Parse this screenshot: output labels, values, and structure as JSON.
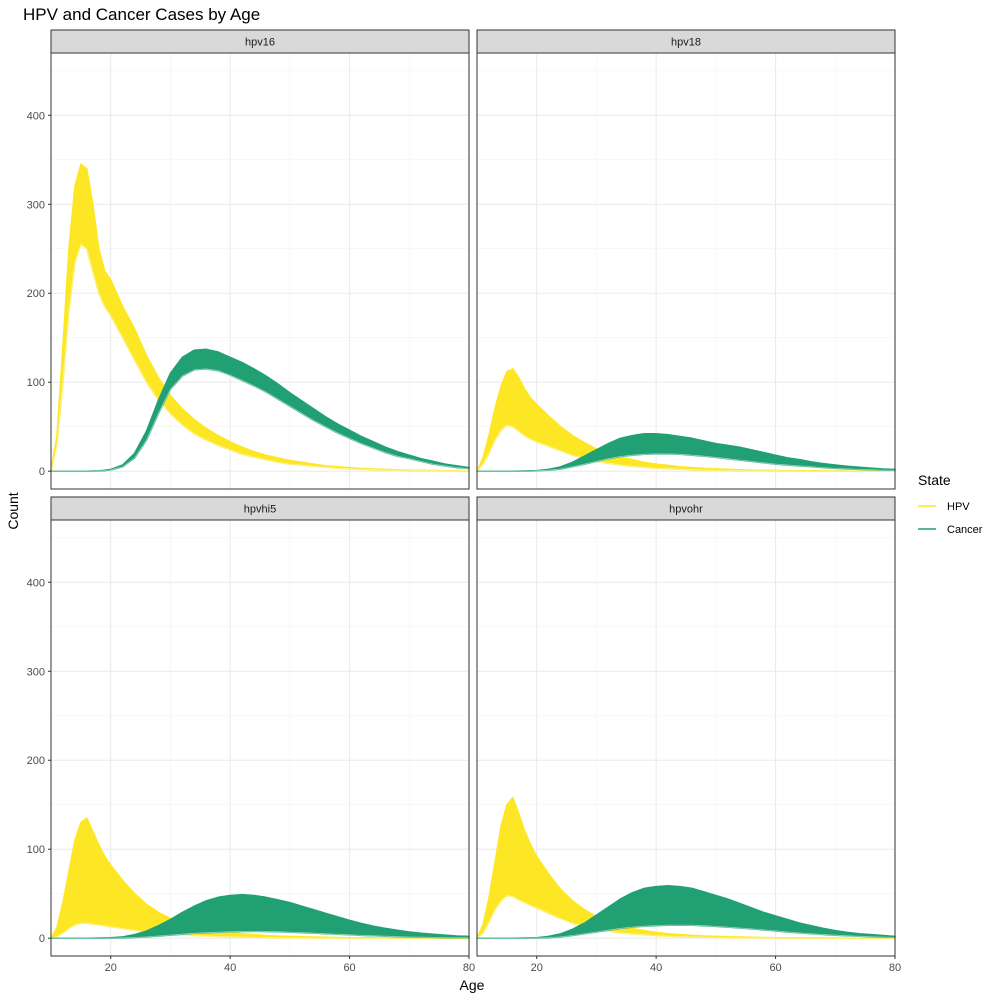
{
  "chart_data": {
    "type": "line",
    "title": "HPV and Cancer Cases by Age",
    "xlabel": "Age",
    "ylabel": "Count",
    "xlim": [
      10,
      80
    ],
    "ylim": [
      -20,
      470
    ],
    "x_ticks": [
      20,
      40,
      60,
      80
    ],
    "y_ticks": [
      0,
      100,
      200,
      300,
      400
    ],
    "grid": true,
    "legend": {
      "title": "State",
      "position": "right",
      "entries": [
        {
          "label": "HPV",
          "color": "#FDE725"
        },
        {
          "label": "Cancer",
          "color": "#21A074"
        }
      ]
    },
    "x": [
      10,
      11,
      12,
      13,
      14,
      15,
      16,
      17,
      18,
      19,
      20,
      22,
      24,
      26,
      28,
      30,
      32,
      34,
      36,
      38,
      40,
      42,
      44,
      46,
      48,
      50,
      52,
      54,
      56,
      58,
      60,
      62,
      64,
      66,
      68,
      70,
      72,
      74,
      76,
      78,
      80
    ],
    "panels": [
      {
        "strip": "hpv16",
        "series": [
          {
            "name": "HPV",
            "band": "upper",
            "values": [
              0,
              40,
              140,
              250,
              320,
              345,
              340,
              300,
              250,
              225,
              215,
              185,
              160,
              130,
              105,
              85,
              70,
              58,
              48,
              40,
              33,
              27,
              22,
              18,
              15,
              12,
              10,
              8,
              6,
              5,
              4,
              3,
              2.5,
              2,
              1.5,
              1,
              1,
              0.8,
              0.5,
              0.3,
              0.2
            ]
          },
          {
            "name": "HPV",
            "band": "lower",
            "values": [
              0,
              30,
              100,
              180,
              235,
              255,
              250,
              225,
              200,
              185,
              175,
              150,
              125,
              100,
              80,
              65,
              52,
              42,
              35,
              29,
              24,
              19,
              16,
              13,
              10,
              8,
              7,
              5.5,
              4.5,
              3.5,
              2.8,
              2.2,
              1.8,
              1.4,
              1,
              0.8,
              0.6,
              0.4,
              0.3,
              0.2,
              0.1
            ]
          },
          {
            "name": "Cancer",
            "band": "upper",
            "values": [
              0,
              0,
              0,
              0,
              0,
              0,
              0,
              0.2,
              0.5,
              1,
              2,
              7,
              20,
              45,
              80,
              110,
              128,
              136,
              137,
              134,
              128,
              122,
              115,
              107,
              98,
              88,
              79,
              70,
              61,
              53,
              46,
              39,
              33,
              27,
              22,
              18,
              14,
              11,
              8,
              6,
              4
            ]
          },
          {
            "name": "Cancer",
            "band": "lower",
            "values": [
              0,
              0,
              0,
              0,
              0,
              0,
              0,
              0.1,
              0.3,
              0.7,
              1.5,
              5,
              15,
              35,
              65,
              92,
              107,
              114,
              115,
              113,
              108,
              102,
              96,
              89,
              81,
              73,
              65,
              57,
              50,
              43,
              37,
              31,
              26,
              21,
              17,
              14,
              11,
              8,
              6,
              4,
              3
            ]
          }
        ]
      },
      {
        "strip": "hpv18",
        "series": [
          {
            "name": "HPV",
            "band": "upper",
            "values": [
              0,
              15,
              40,
              70,
              95,
              112,
              115,
              105,
              92,
              82,
              75,
              62,
              50,
              40,
              32,
              25,
              20,
              16,
              13,
              10,
              8,
              6.5,
              5,
              4,
              3.2,
              2.6,
              2,
              1.6,
              1.2,
              1,
              0.8,
              0.6,
              0.5,
              0.4,
              0.3,
              0.2,
              0.2,
              0.1,
              0.1,
              0.1,
              0
            ]
          },
          {
            "name": "HPV",
            "band": "lower",
            "values": [
              0,
              8,
              20,
              35,
              46,
              52,
              50,
              45,
              40,
              36,
              33,
              28,
              23,
              18,
              14,
              11,
              9,
              7,
              5.5,
              4.5,
              3.5,
              2.8,
              2.2,
              1.8,
              1.4,
              1.1,
              0.9,
              0.7,
              0.5,
              0.4,
              0.3,
              0.25,
              0.2,
              0.15,
              0.1,
              0.1,
              0.05,
              0.05,
              0,
              0,
              0
            ]
          },
          {
            "name": "Cancer",
            "band": "upper",
            "values": [
              0,
              0,
              0,
              0,
              0,
              0,
              0,
              0.1,
              0.2,
              0.4,
              0.7,
              2,
              5,
              10,
              17,
              24,
              31,
              37,
              40,
              42,
              42,
              41,
              39,
              37,
              34,
              31,
              29,
              27,
              24,
              21,
              18,
              15,
              13,
              10.5,
              8.5,
              7,
              5.5,
              4.5,
              3.5,
              2.5,
              2
            ]
          },
          {
            "name": "Cancer",
            "band": "lower",
            "values": [
              0,
              0,
              0,
              0,
              0,
              0,
              0,
              0.05,
              0.1,
              0.2,
              0.4,
              1,
              2.5,
              5,
              8,
              11,
              14,
              16.5,
              18,
              19,
              19.5,
              19.5,
              19,
              18,
              17,
              15.5,
              14,
              12.5,
              11,
              9.5,
              8,
              7,
              6,
              5,
              4,
              3.2,
              2.6,
              2,
              1.6,
              1.2,
              1
            ]
          }
        ]
      },
      {
        "strip": "hpvhi5",
        "series": [
          {
            "name": "HPV",
            "band": "upper",
            "values": [
              0,
              12,
              40,
              75,
              110,
              130,
              135,
              120,
              105,
              92,
              82,
              65,
              50,
              38,
              29,
              22,
              17,
              13,
              10,
              8,
              6.5,
              5,
              4,
              3,
              2.5,
              2,
              1.6,
              1.3,
              1,
              0.8,
              0.6,
              0.5,
              0.4,
              0.3,
              0.2,
              0.2,
              0.1,
              0.1,
              0.1,
              0,
              0
            ]
          },
          {
            "name": "HPV",
            "band": "lower",
            "values": [
              0,
              2,
              6,
              11,
              15,
              17,
              17,
              16,
              15,
              14,
              13,
              11,
              9,
              7,
              6,
              5,
              4,
              3.2,
              2.6,
              2,
              1.6,
              1.3,
              1,
              0.8,
              0.6,
              0.5,
              0.4,
              0.3,
              0.25,
              0.2,
              0.15,
              0.1,
              0.1,
              0.05,
              0.05,
              0,
              0,
              0,
              0,
              0,
              0
            ]
          },
          {
            "name": "Cancer",
            "band": "upper",
            "values": [
              0,
              0,
              0,
              0,
              0,
              0,
              0,
              0.1,
              0.2,
              0.3,
              0.5,
              1.5,
              4,
              8,
              14,
              21,
              29,
              36,
              42,
              46,
              48,
              49,
              48,
              46,
              43,
              40,
              36,
              32,
              28,
              24,
              20,
              16.5,
              13.5,
              11,
              9,
              7,
              5.5,
              4.5,
              3.5,
              2.5,
              2
            ]
          },
          {
            "name": "Cancer",
            "band": "lower",
            "values": [
              0,
              0,
              0,
              0,
              0,
              0,
              0,
              0,
              0,
              0.05,
              0.1,
              0.3,
              0.8,
              1.5,
              2.5,
              3.5,
              4.5,
              5.5,
              6.2,
              6.8,
              7.2,
              7.5,
              7.6,
              7.5,
              7.2,
              6.8,
              6.3,
              5.7,
              5,
              4.4,
              3.8,
              3.2,
              2.7,
              2.2,
              1.8,
              1.4,
              1.1,
              0.9,
              0.7,
              0.5,
              0.4
            ]
          }
        ]
      },
      {
        "strip": "hpvohr",
        "series": [
          {
            "name": "HPV",
            "band": "upper",
            "values": [
              0,
              15,
              45,
              85,
              125,
              150,
              158,
              140,
              120,
              105,
              92,
              72,
              55,
              42,
              32,
              24,
              18,
              14,
              11,
              8.5,
              6.5,
              5,
              4,
              3.2,
              2.5,
              2,
              1.6,
              1.3,
              1,
              0.8,
              0.6,
              0.5,
              0.4,
              0.3,
              0.2,
              0.2,
              0.1,
              0.1,
              0.1,
              0,
              0
            ]
          },
          {
            "name": "HPV",
            "band": "lower",
            "values": [
              0,
              6,
              18,
              32,
              42,
              48,
              47,
              43,
              40,
              37,
              34,
              28,
              22,
              17,
              13,
              10,
              8,
              6,
              5,
              4,
              3,
              2.4,
              1.9,
              1.5,
              1.2,
              0.9,
              0.7,
              0.55,
              0.45,
              0.35,
              0.3,
              0.2,
              0.15,
              0.1,
              0.1,
              0.05,
              0.05,
              0,
              0,
              0,
              0
            ]
          },
          {
            "name": "Cancer",
            "band": "upper",
            "values": [
              0,
              0,
              0,
              0,
              0,
              0,
              0,
              0.1,
              0.2,
              0.3,
              0.5,
              2,
              5,
              10,
              17,
              26,
              35,
              44,
              51,
              56,
              58,
              59,
              58,
              56,
              52,
              48,
              44,
              39,
              34,
              29,
              25,
              21,
              17,
              14,
              11,
              8.5,
              6.5,
              5,
              4,
              3,
              2
            ]
          },
          {
            "name": "Cancer",
            "band": "lower",
            "values": [
              0,
              0,
              0,
              0,
              0,
              0,
              0,
              0,
              0.05,
              0.1,
              0.2,
              0.6,
              1.5,
              3,
              5,
              7,
              9,
              11,
              12.5,
              13.5,
              14.2,
              14.6,
              14.7,
              14.5,
              14,
              13.3,
              12.5,
              11.5,
              10.5,
              9.3,
              8.2,
              7,
              6,
              5,
              4.2,
              3.4,
              2.7,
              2.1,
              1.6,
              1.2,
              0.9
            ]
          }
        ]
      }
    ]
  }
}
